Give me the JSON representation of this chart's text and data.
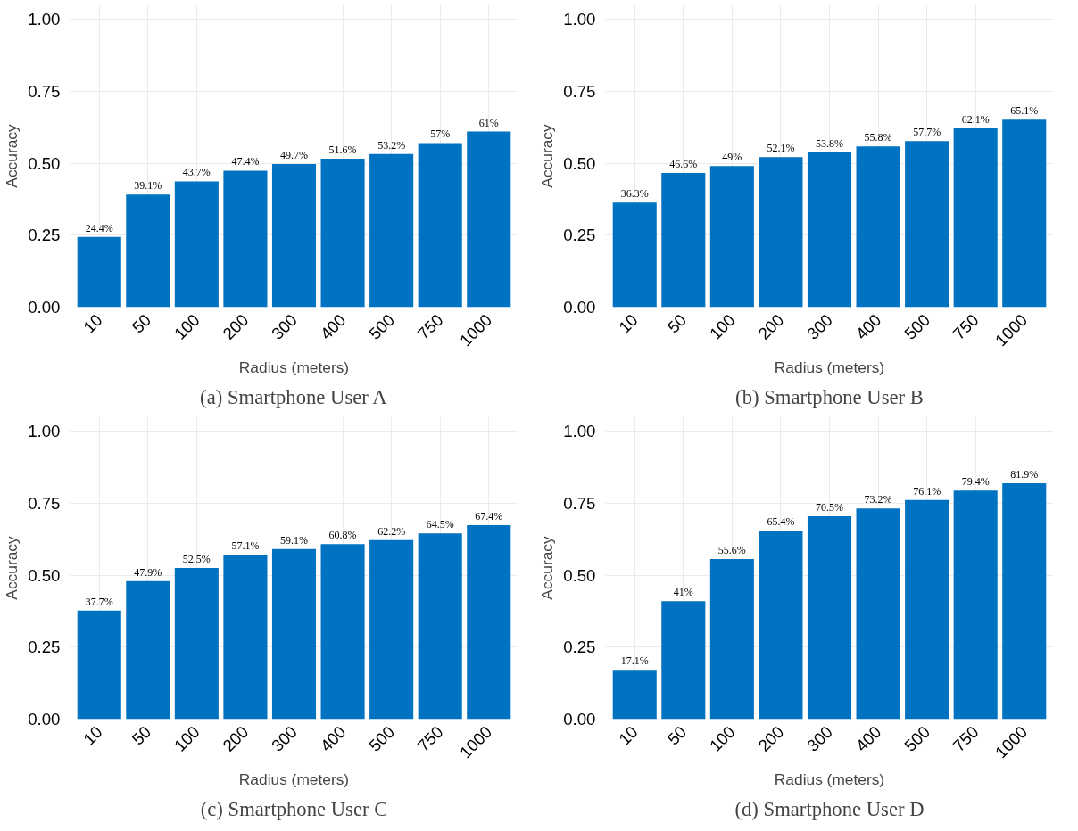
{
  "chart_data": [
    {
      "type": "bar",
      "title": "(a) Smartphone User A",
      "xlabel": "Radius (meters)",
      "ylabel": "Accuracy",
      "categories": [
        "10",
        "50",
        "100",
        "200",
        "300",
        "400",
        "500",
        "750",
        "1000"
      ],
      "values": [
        0.244,
        0.391,
        0.437,
        0.474,
        0.497,
        0.516,
        0.532,
        0.57,
        0.61
      ],
      "value_labels": [
        "24.4%",
        "39.1%",
        "43.7%",
        "47.4%",
        "49.7%",
        "51.6%",
        "53.2%",
        "57%",
        "61%"
      ],
      "color": "#0072c2",
      "ylim": [
        0,
        1.05
      ],
      "yticks": [
        {
          "value": 0,
          "label": "0.00"
        },
        {
          "value": 0.25,
          "label": "0.25"
        },
        {
          "value": 0.5,
          "label": "0.50"
        },
        {
          "value": 0.75,
          "label": "0.75"
        },
        {
          "value": 1,
          "label": "1.00"
        }
      ],
      "grid": true
    },
    {
      "type": "bar",
      "title": "(b) Smartphone User B",
      "xlabel": "Radius (meters)",
      "ylabel": "Accuracy",
      "categories": [
        "10",
        "50",
        "100",
        "200",
        "300",
        "400",
        "500",
        "750",
        "1000"
      ],
      "values": [
        0.363,
        0.466,
        0.49,
        0.521,
        0.538,
        0.558,
        0.577,
        0.621,
        0.651
      ],
      "value_labels": [
        "36.3%",
        "46.6%",
        "49%",
        "52.1%",
        "53.8%",
        "55.8%",
        "57.7%",
        "62.1%",
        "65.1%"
      ],
      "color": "#0072c2",
      "ylim": [
        0,
        1.05
      ],
      "yticks": [
        {
          "value": 0,
          "label": "0.00"
        },
        {
          "value": 0.25,
          "label": "0.25"
        },
        {
          "value": 0.5,
          "label": "0.50"
        },
        {
          "value": 0.75,
          "label": "0.75"
        },
        {
          "value": 1,
          "label": "1.00"
        }
      ],
      "grid": true
    },
    {
      "type": "bar",
      "title": "(c) Smartphone User C",
      "xlabel": "Radius (meters)",
      "ylabel": "Accuracy",
      "categories": [
        "10",
        "50",
        "100",
        "200",
        "300",
        "400",
        "500",
        "750",
        "1000"
      ],
      "values": [
        0.377,
        0.479,
        0.525,
        0.571,
        0.591,
        0.608,
        0.622,
        0.645,
        0.674
      ],
      "value_labels": [
        "37.7%",
        "47.9%",
        "52.5%",
        "57.1%",
        "59.1%",
        "60.8%",
        "62.2%",
        "64.5%",
        "67.4%"
      ],
      "color": "#0072c2",
      "ylim": [
        0,
        1.05
      ],
      "yticks": [
        {
          "value": 0,
          "label": "0.00"
        },
        {
          "value": 0.25,
          "label": "0.25"
        },
        {
          "value": 0.5,
          "label": "0.50"
        },
        {
          "value": 0.75,
          "label": "0.75"
        },
        {
          "value": 1,
          "label": "1.00"
        }
      ],
      "grid": true
    },
    {
      "type": "bar",
      "title": "(d) Smartphone User D",
      "xlabel": "Radius (meters)",
      "ylabel": "Accuracy",
      "categories": [
        "10",
        "50",
        "100",
        "200",
        "300",
        "400",
        "500",
        "750",
        "1000"
      ],
      "values": [
        0.171,
        0.41,
        0.556,
        0.654,
        0.705,
        0.732,
        0.761,
        0.794,
        0.819
      ],
      "value_labels": [
        "17.1%",
        "41%",
        "55.6%",
        "65.4%",
        "70.5%",
        "73.2%",
        "76.1%",
        "79.4%",
        "81.9%"
      ],
      "color": "#0072c2",
      "ylim": [
        0,
        1.05
      ],
      "yticks": [
        {
          "value": 0,
          "label": "0.00"
        },
        {
          "value": 0.25,
          "label": "0.25"
        },
        {
          "value": 0.5,
          "label": "0.50"
        },
        {
          "value": 0.75,
          "label": "0.75"
        },
        {
          "value": 1,
          "label": "1.00"
        }
      ],
      "grid": true
    }
  ]
}
